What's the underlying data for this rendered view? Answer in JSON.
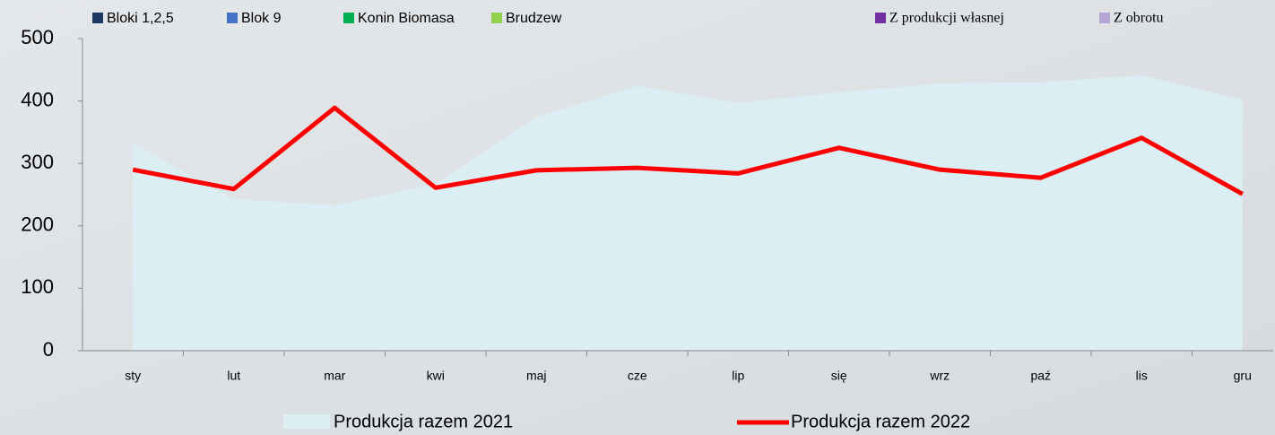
{
  "chart_data": {
    "type": "area-line",
    "categories": [
      "sty",
      "lut",
      "mar",
      "kwi",
      "maj",
      "cze",
      "lip",
      "się",
      "wrz",
      "paź",
      "lis",
      "gru"
    ],
    "series": [
      {
        "name": "Produkcja razem 2021",
        "type": "area",
        "color": "#daeef3",
        "values": [
          332,
          243,
          233,
          267,
          374,
          424,
          397,
          414,
          428,
          430,
          441,
          402
        ]
      },
      {
        "name": "Produkcja razem 2022",
        "type": "line",
        "color": "#ff0000",
        "values": [
          290,
          259,
          389,
          261,
          289,
          293,
          284,
          325,
          290,
          277,
          341,
          251
        ]
      }
    ],
    "legend_items": [
      {
        "name": "Bloki 1,2,5",
        "color": "#1f3864"
      },
      {
        "name": "Blok 9",
        "color": "#4472c4"
      },
      {
        "name": "Konin Biomasa",
        "color": "#00b050"
      },
      {
        "name": "Brudzew",
        "color": "#92d050"
      },
      {
        "name": "Z produkcji własnej",
        "color": "#7030a0"
      },
      {
        "name": "Z obrotu",
        "color": "#b4a7d6"
      }
    ],
    "ylim": [
      0,
      500
    ],
    "yticks": [
      0,
      100,
      200,
      300,
      400,
      500
    ]
  }
}
